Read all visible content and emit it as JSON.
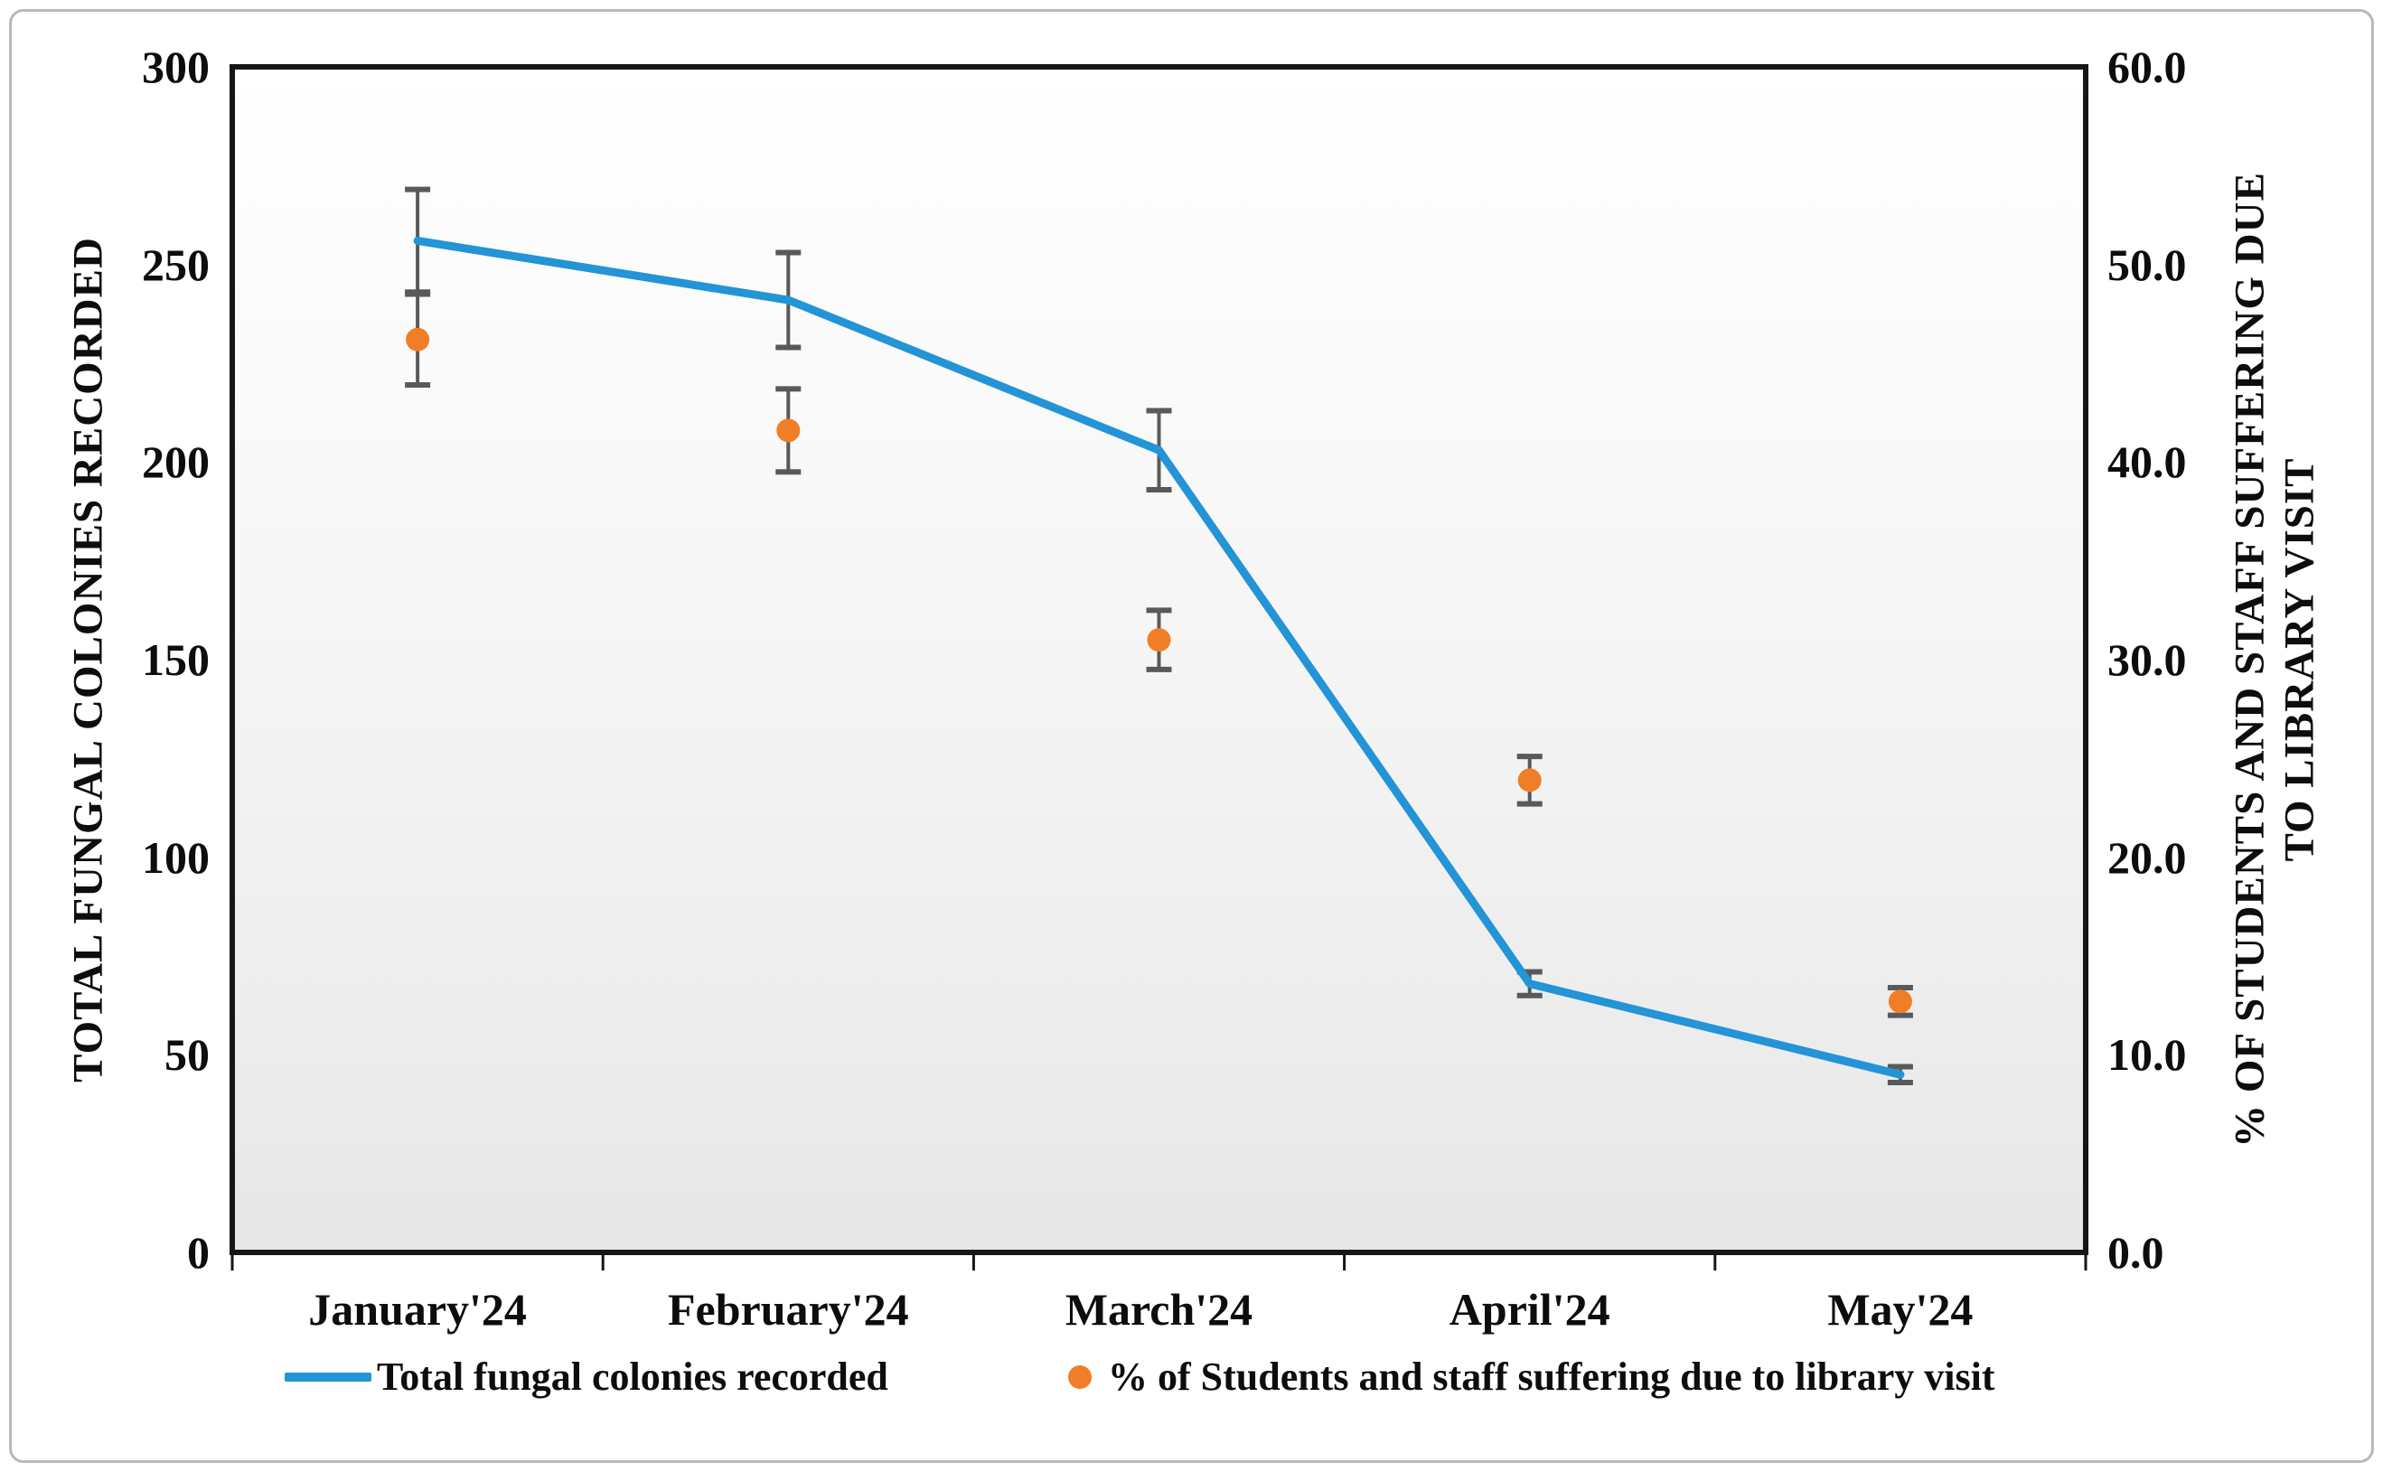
{
  "chart_data": {
    "type": "line",
    "title": "",
    "grid": false,
    "legend_position": "bottom",
    "categories": [
      "January'24",
      "February'24",
      "March'24",
      "April'24",
      "May'24"
    ],
    "series": [
      {
        "name": "Total fungal colonies recorded",
        "axis": "left",
        "style": "line",
        "color": "#2394D6",
        "values": [
          256,
          241,
          203,
          68,
          45
        ],
        "error": [
          13,
          12,
          10,
          3,
          2
        ]
      },
      {
        "name": "% of Students and staff suffering due to library visit",
        "axis": "right",
        "style": "scatter",
        "color": "#F07E27",
        "values": [
          46.2,
          41.6,
          31.0,
          23.9,
          12.7
        ],
        "error": [
          2.3,
          2.1,
          1.5,
          1.2,
          0.7
        ]
      }
    ],
    "left_axis": {
      "title": "TOTAL FUNGAL COLONIES RECORDED",
      "min": 0,
      "max": 300,
      "step": 50,
      "tick_labels": [
        "300",
        "250",
        "200",
        "150",
        "100",
        "50",
        "0"
      ]
    },
    "right_axis": {
      "title_line1": "% OF STUDENTS AND STAFF SUFFERING DUE",
      "title_line2": "TO LIBRARY VISIT",
      "min": 0,
      "max": 60,
      "step": 10,
      "tick_labels": [
        "60.0",
        "50.0",
        "40.0",
        "30.0",
        "20.0",
        "10.0",
        "0.0"
      ]
    },
    "colors": {
      "error_bar": "#58595B",
      "plot_border": "#161616",
      "plot_bg_top": "#FFFFFF",
      "plot_bg_mid": "#F5F5F5",
      "plot_bg_bottom": "#E7E7E7",
      "frame_border": "#B9B9B9"
    }
  }
}
